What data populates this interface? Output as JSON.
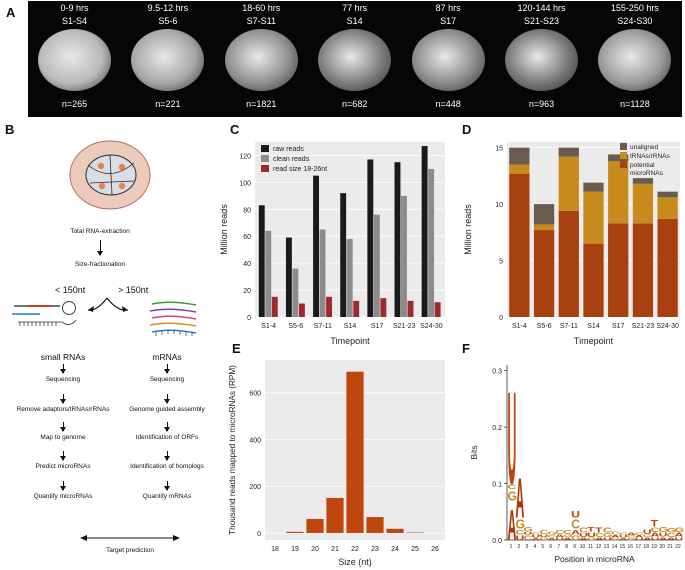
{
  "panel_a": {
    "label": "A",
    "stages": [
      {
        "time": "0-9 hrs",
        "stage": "S1-S4",
        "n": "n=265",
        "tone": "#b9b9b9"
      },
      {
        "time": "9.5-12 hrs",
        "stage": "S5-6",
        "n": "n=221",
        "tone": "#a7a7a7"
      },
      {
        "time": "18-60 hrs",
        "stage": "S7-S11",
        "n": "n=1821",
        "tone": "#909090"
      },
      {
        "time": "77 hrs",
        "stage": "S14",
        "n": "n=682",
        "tone": "#7d7d7d"
      },
      {
        "time": "87 hrs",
        "stage": "S17",
        "n": "n=448",
        "tone": "#8a8a8a"
      },
      {
        "time": "120-144 hrs",
        "stage": "S21-S23",
        "n": "n=963",
        "tone": "#777777"
      },
      {
        "time": "155-250 hrs",
        "stage": "S24-S30",
        "n": "n=1128",
        "tone": "#9a9a9a"
      }
    ]
  },
  "panel_b": {
    "label": "B",
    "total_rna": "Total RNA-extraction",
    "size_fractionation": "Size-fractionation",
    "lt150": "< 150nt",
    "gt150": "> 150nt",
    "small_rnas": "small RNAs",
    "mrnas": "mRNAs",
    "left_steps": [
      "Sequencing",
      "Remove adaptors/tRNAs/rRNAs",
      "Map to genome",
      "Predict microRNAs",
      "Quantify microRNAs"
    ],
    "right_steps": [
      "Sequencing",
      "Genome guided assembly",
      "Identification of ORFs",
      "Identification of homologs",
      "Quantify mRNAs"
    ],
    "target": "Target prediction"
  },
  "chart_data": [
    {
      "panel": "C",
      "type": "bar",
      "categories": [
        "S1-4",
        "S5-6",
        "S7-11",
        "S14",
        "S17",
        "S21-23",
        "S24-30"
      ],
      "series": [
        {
          "name": "raw reads",
          "color": "#1a1a1a",
          "values": [
            83,
            59,
            105,
            92,
            117,
            115,
            127
          ]
        },
        {
          "name": "clean reads",
          "color": "#8c8c8c",
          "values": [
            64,
            36,
            65,
            58,
            76,
            90,
            110
          ]
        },
        {
          "name": "read size 18-26nt",
          "color": "#9e2a2a",
          "values": [
            15,
            10,
            15,
            12,
            14,
            12,
            11
          ]
        }
      ],
      "ylabel": "Million reads",
      "xlabel": "Timepoint",
      "ylim": [
        0,
        130
      ],
      "yticks": [
        "0",
        "20",
        "40",
        "60",
        "80",
        "100",
        "120"
      ],
      "ytick_values": [
        0,
        20,
        40,
        60,
        80,
        100,
        120
      ],
      "legend": "top-left"
    },
    {
      "panel": "D",
      "type": "bar",
      "stacked": true,
      "categories": [
        "S1-4",
        "S5-6",
        "S7-11",
        "S14",
        "S17",
        "S21-23",
        "S24-30"
      ],
      "series": [
        {
          "name": "potential microRNAs",
          "color": "#a8410f",
          "values": [
            12.7,
            7.7,
            9.4,
            6.5,
            8.3,
            8.3,
            8.7
          ]
        },
        {
          "name": "tRNAs/rRNAs",
          "color": "#c78a1d",
          "values": [
            0.8,
            0.5,
            4.8,
            4.6,
            5.5,
            3.5,
            1.9
          ]
        },
        {
          "name": "unaligned",
          "color": "#6a5a50",
          "values": [
            1.5,
            1.8,
            0.8,
            0.8,
            0.6,
            0.5,
            0.5
          ]
        }
      ],
      "legend_labels": [
        "unaligned",
        "tRNAs/rRNAs",
        "potential microRNAs"
      ],
      "ylabel": "Million reads",
      "xlabel": "Timepoint",
      "ylim": [
        0,
        15.5
      ],
      "yticks": [
        "0",
        "5",
        "10",
        "15"
      ],
      "ytick_values": [
        0,
        5,
        10,
        15
      ],
      "legend": "top-right"
    },
    {
      "panel": "E",
      "type": "bar",
      "categories": [
        "18",
        "19",
        "20",
        "21",
        "22",
        "23",
        "24",
        "25",
        "26"
      ],
      "values": [
        0,
        5,
        60,
        150,
        690,
        68,
        18,
        2,
        0
      ],
      "color": "#c0460f",
      "ylabel": "Thousand reads mapped to microRNAs (RPM)",
      "xlabel": "Size (nt)",
      "ylim": [
        -30,
        740
      ],
      "yticks": [
        "0",
        "200",
        "400",
        "600"
      ],
      "ytick_values": [
        0,
        200,
        400,
        600
      ]
    },
    {
      "panel": "F",
      "type": "sequence-logo",
      "positions": [
        "1",
        "2",
        "3",
        "4",
        "5",
        "6",
        "7",
        "8",
        "9",
        "10",
        "11",
        "12",
        "13",
        "14",
        "15",
        "16",
        "17",
        "18",
        "19",
        "20",
        "21",
        "22"
      ],
      "columns": [
        [
          {
            "l": "A",
            "h": 0.07
          },
          {
            "l": "G",
            "h": 0.02
          },
          {
            "l": "C",
            "h": 0.01
          },
          {
            "l": "U",
            "h": 0.21
          }
        ],
        [
          {
            "l": "U",
            "h": 0.01
          },
          {
            "l": "C",
            "h": 0.01
          },
          {
            "l": "G",
            "h": 0.02
          },
          {
            "l": "A",
            "h": 0.09
          }
        ],
        [
          {
            "l": "C",
            "h": 0.01
          },
          {
            "l": "U",
            "h": 0.005
          },
          {
            "l": "G",
            "h": 0.01
          }
        ],
        [
          {
            "l": "A",
            "h": 0.004
          },
          {
            "l": "U",
            "h": 0.005
          },
          {
            "l": "C",
            "h": 0.006
          }
        ],
        [
          {
            "l": "G",
            "h": 0.005
          },
          {
            "l": "U",
            "h": 0.006
          },
          {
            "l": "C",
            "h": 0.008
          }
        ],
        [
          {
            "l": "A",
            "h": 0.004
          },
          {
            "l": "C",
            "h": 0.006
          },
          {
            "l": "G",
            "h": 0.007
          }
        ],
        [
          {
            "l": "U",
            "h": 0.005
          },
          {
            "l": "A",
            "h": 0.006
          },
          {
            "l": "C",
            "h": 0.008
          }
        ],
        [
          {
            "l": "A",
            "h": 0.005
          },
          {
            "l": "G",
            "h": 0.006
          },
          {
            "l": "C",
            "h": 0.008
          }
        ],
        [
          {
            "l": "G",
            "h": 0.01
          },
          {
            "l": "A",
            "h": 0.01
          },
          {
            "l": "C",
            "h": 0.02
          },
          {
            "l": "U",
            "h": 0.015
          }
        ],
        [
          {
            "l": "A",
            "h": 0.005
          },
          {
            "l": "U",
            "h": 0.008
          },
          {
            "l": "C",
            "h": 0.012
          }
        ],
        [
          {
            "l": "G",
            "h": 0.005
          },
          {
            "l": "U",
            "h": 0.01
          },
          {
            "l": "T",
            "h": 0.01
          }
        ],
        [
          {
            "l": "A",
            "h": 0.005
          },
          {
            "l": "C",
            "h": 0.008
          },
          {
            "l": "T",
            "h": 0.012
          }
        ],
        [
          {
            "l": "U",
            "h": 0.005
          },
          {
            "l": "G",
            "h": 0.008
          },
          {
            "l": "C",
            "h": 0.012
          }
        ],
        [
          {
            "l": "G",
            "h": 0.004
          },
          {
            "l": "A",
            "h": 0.006
          },
          {
            "l": "C",
            "h": 0.007
          }
        ],
        [
          {
            "l": "A",
            "h": 0.004
          },
          {
            "l": "U",
            "h": 0.005
          },
          {
            "l": "C",
            "h": 0.006
          }
        ],
        [
          {
            "l": "G",
            "h": 0.004
          },
          {
            "l": "C",
            "h": 0.005
          },
          {
            "l": "A",
            "h": 0.006
          }
        ],
        [
          {
            "l": "U",
            "h": 0.004
          },
          {
            "l": "A",
            "h": 0.005
          },
          {
            "l": "C",
            "h": 0.006
          }
        ],
        [
          {
            "l": "A",
            "h": 0.005
          },
          {
            "l": "C",
            "h": 0.006
          },
          {
            "l": "U",
            "h": 0.01
          }
        ],
        [
          {
            "l": "U",
            "h": 0.006
          },
          {
            "l": "A",
            "h": 0.008
          },
          {
            "l": "C",
            "h": 0.01
          },
          {
            "l": "T",
            "h": 0.015
          }
        ],
        [
          {
            "l": "A",
            "h": 0.006
          },
          {
            "l": "U",
            "h": 0.008
          },
          {
            "l": "G",
            "h": 0.012
          }
        ],
        [
          {
            "l": "A",
            "h": 0.005
          },
          {
            "l": "C",
            "h": 0.008
          },
          {
            "l": "G",
            "h": 0.01
          }
        ],
        [
          {
            "l": "U",
            "h": 0.006
          },
          {
            "l": "A",
            "h": 0.008
          },
          {
            "l": "G",
            "h": 0.01
          }
        ]
      ],
      "colors": {
        "A": "#b03208",
        "U": "#c0440c",
        "T": "#c0440c",
        "G": "#c98a20",
        "C": "#b98f30"
      },
      "ylabel": "Bits",
      "xlabel": "Position in microRNA",
      "ylim": [
        0,
        0.31
      ],
      "yticks": [
        "0.0",
        "0.1",
        "0.2",
        "0.3"
      ],
      "ytick_values": [
        0,
        0.1,
        0.2,
        0.3
      ]
    }
  ]
}
